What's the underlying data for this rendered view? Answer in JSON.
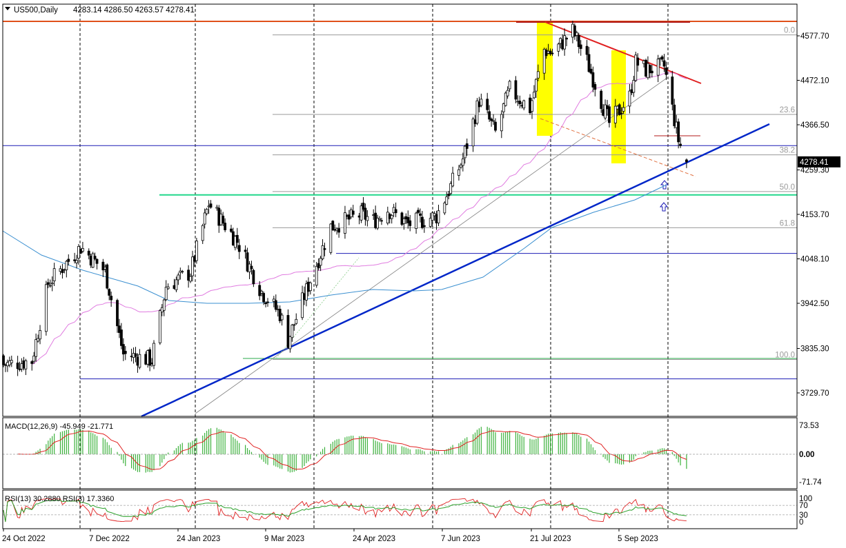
{
  "header": {
    "symbol_text": "US500,Daily",
    "ohlc_text": "4283.14 4286.50 4263.57 4278.41"
  },
  "colors": {
    "background": "#ffffff",
    "candle_up": "#000000",
    "candle_up_fill": "#ffffff",
    "candle_down": "#000000",
    "candle_down_fill": "#000000",
    "ma_pink": "#e07be0",
    "ma_blue": "#3a8fd0",
    "trend_blue": "#0026c8",
    "resistance_red": "#e02020",
    "hline_navy": "#1b1bb5",
    "support_green": "#21d78a",
    "fib_gray": "#9a9a9a",
    "highlight_yellow": "#ffff00",
    "macd_hist": "#3bb13b",
    "macd_signal": "#e02020",
    "rsi13": "#2aa02a",
    "rsi3": "#e02020"
  },
  "price_axis": {
    "ticks": [
      "4577.70",
      "4472.10",
      "4366.50",
      "4259.30",
      "4153.70",
      "4048.10",
      "3942.50",
      "3835.30",
      "3729.70"
    ],
    "current_price_label": "4278.41"
  },
  "time_axis": {
    "labels": [
      "24 Oct 2022",
      "7 Dec 2022",
      "24 Jan 2023",
      "9 Mar 2023",
      "24 Apr 2023",
      "7 Jun 2023",
      "21 Jul 2023",
      "5 Sep 2023"
    ]
  },
  "fib_levels": [
    {
      "label": "0.0",
      "price": 4580
    },
    {
      "label": "23.6",
      "price": 4391
    },
    {
      "label": "38.2",
      "price": 4295
    },
    {
      "label": "50.0",
      "price": 4208
    },
    {
      "label": "61.8",
      "price": 4122
    },
    {
      "label": "100.0",
      "price": 3809
    }
  ],
  "macd": {
    "label": "MACD(12,26,9) -45.949 -21.771",
    "ticks": [
      "73.53",
      "0.00",
      "-71.74"
    ]
  },
  "rsi": {
    "label": "RSI(13) 30.2880  RSI(3) 17.3360",
    "ticks": [
      "100",
      "70",
      "30",
      "0"
    ]
  },
  "chart_data": {
    "type": "candlestick",
    "title": "US500,Daily",
    "ylim": [
      3680,
      4620
    ],
    "x_labels": [
      "24 Oct 2022",
      "7 Dec 2022",
      "24 Jan 2023",
      "9 Mar 2023",
      "24 Apr 2023",
      "7 Jun 2023",
      "21 Jul 2023",
      "5 Sep 2023"
    ],
    "close_path": [
      [
        "24 Oct 2022",
        3797
      ],
      [
        "7 Nov 2022",
        3806
      ],
      [
        "15 Nov 2022",
        3990
      ],
      [
        "1 Dec 2022",
        4076
      ],
      [
        "13 Dec 2022",
        4019
      ],
      [
        "22 Dec 2022",
        3822
      ],
      [
        "5 Jan 2023",
        3808
      ],
      [
        "12 Jan 2023",
        3983
      ],
      [
        "24 Jan 2023",
        4016
      ],
      [
        "2 Feb 2023",
        4179
      ],
      [
        "16 Feb 2023",
        4090
      ],
      [
        "28 Feb 2023",
        3970
      ],
      [
        "9 Mar 2023",
        3918
      ],
      [
        "13 Mar 2023",
        3855
      ],
      [
        "21 Mar 2023",
        3960
      ],
      [
        "3 Apr 2023",
        4124
      ],
      [
        "18 Apr 2023",
        4154
      ],
      [
        "24 Apr 2023",
        4138
      ],
      [
        "1 May 2023",
        4166
      ],
      [
        "11 May 2023",
        4130
      ],
      [
        "25 May 2023",
        4150
      ],
      [
        "1 Jun 2023",
        4220
      ],
      [
        "7 Jun 2023",
        4285
      ],
      [
        "15 Jun 2023",
        4425
      ],
      [
        "23 Jun 2023",
        4348
      ],
      [
        "30 Jun 2023",
        4450
      ],
      [
        "10 Jul 2023",
        4405
      ],
      [
        "17 Jul 2023",
        4545
      ],
      [
        "21 Jul 2023",
        4536
      ],
      [
        "31 Jul 2023",
        4589
      ],
      [
        "7 Aug 2023",
        4518
      ],
      [
        "18 Aug 2023",
        4370
      ],
      [
        "28 Aug 2023",
        4433
      ],
      [
        "31 Aug 2023",
        4515
      ],
      [
        "5 Sep 2023",
        4497
      ],
      [
        "14 Sep 2023",
        4505
      ],
      [
        "21 Sep 2023",
        4330
      ],
      [
        "25 Sep 2023",
        4278
      ]
    ],
    "horizontal_lines": [
      {
        "kind": "resistance",
        "price": 4612
      },
      {
        "kind": "level",
        "price": 4317
      },
      {
        "kind": "support",
        "price": 4200
      },
      {
        "kind": "level",
        "price": 4061
      },
      {
        "kind": "level",
        "price": 3763
      }
    ],
    "trendlines": [
      {
        "kind": "support",
        "from": [
          "Dec 2022",
          3625
        ],
        "to": [
          "Oct 2023",
          4362
        ]
      },
      {
        "kind": "resistance",
        "from": [
          "27 Jul 2023",
          4598
        ],
        "to": [
          "Oct 2023",
          4481
        ]
      }
    ],
    "macd_ylim": [
      -71.74,
      73.53
    ],
    "rsi_ylim": [
      0,
      100
    ]
  }
}
